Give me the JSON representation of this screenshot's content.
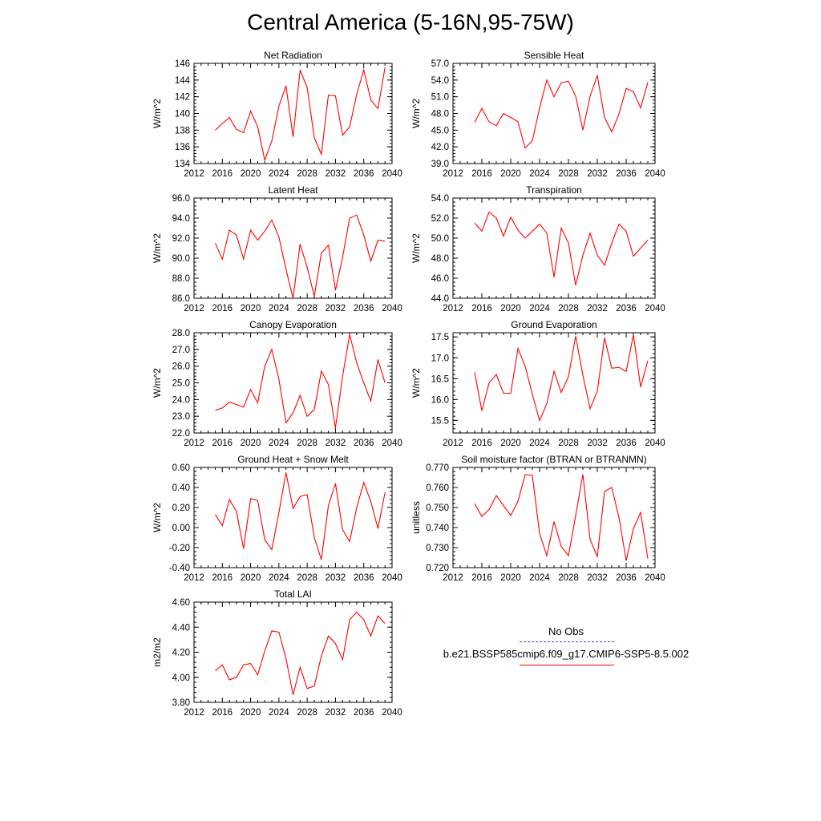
{
  "page": {
    "title": "Central America (5-16N,95-75W)"
  },
  "legend": {
    "obs_label": "No Obs",
    "case_label": "b.e21.BSSP585cmip6.f09_g17.CMIP6-SSP5-8.5.002",
    "obs_color": "#3a3adf",
    "case_color": "#ff0000"
  },
  "chart_data": [
    {
      "type": "line",
      "title": "Net Radiation",
      "xlabel": "",
      "ylabel": "W/m^2",
      "xlim": [
        2012,
        2040
      ],
      "ylim": [
        134,
        146
      ],
      "xticks": [
        "2012",
        "2016",
        "2020",
        "2024",
        "2028",
        "2032",
        "2036",
        "2040"
      ],
      "yticks": [
        "134",
        "136",
        "138",
        "140",
        "142",
        "144",
        "146"
      ],
      "x": [
        2015,
        2016,
        2017,
        2018,
        2019,
        2020,
        2021,
        2022,
        2023,
        2024,
        2025,
        2026,
        2027,
        2028,
        2029,
        2030,
        2031,
        2032,
        2033,
        2034,
        2035,
        2036,
        2037,
        2038,
        2039
      ],
      "series": [
        {
          "color": "#ff0000",
          "values": [
            138.0,
            138.8,
            139.5,
            138.1,
            137.7,
            140.3,
            138.4,
            134.4,
            136.7,
            140.9,
            143.3,
            137.2,
            145.2,
            143.1,
            137.1,
            135.1,
            142.2,
            142.1,
            137.4,
            138.4,
            142.3,
            145.2,
            141.6,
            140.6,
            145.5
          ]
        }
      ]
    },
    {
      "type": "line",
      "title": "Sensible Heat",
      "xlabel": "",
      "ylabel": "W/m^2",
      "xlim": [
        2012,
        2040
      ],
      "ylim": [
        39.0,
        57.0
      ],
      "xticks": [
        "2012",
        "2016",
        "2020",
        "2024",
        "2028",
        "2032",
        "2036",
        "2040"
      ],
      "yticks": [
        "39.0",
        "42.0",
        "45.0",
        "48.0",
        "51.0",
        "54.0",
        "57.0"
      ],
      "x": [
        2015,
        2016,
        2017,
        2018,
        2019,
        2020,
        2021,
        2022,
        2023,
        2024,
        2025,
        2026,
        2027,
        2028,
        2029,
        2030,
        2031,
        2032,
        2033,
        2034,
        2035,
        2036,
        2037,
        2038,
        2039
      ],
      "series": [
        {
          "color": "#ff0000",
          "values": [
            46.4,
            48.9,
            46.5,
            45.8,
            48.0,
            47.3,
            46.5,
            41.8,
            43.1,
            49.0,
            54.0,
            51.0,
            53.5,
            53.8,
            51.1,
            45.0,
            51.1,
            54.8,
            47.3,
            44.7,
            47.9,
            52.5,
            51.9,
            49.0,
            53.6
          ]
        }
      ]
    },
    {
      "type": "line",
      "title": "Latent Heat",
      "xlabel": "",
      "ylabel": "W/m^2",
      "xlim": [
        2012,
        2040
      ],
      "ylim": [
        86.0,
        96.0
      ],
      "xticks": [
        "2012",
        "2016",
        "2020",
        "2024",
        "2028",
        "2032",
        "2036",
        "2040"
      ],
      "yticks": [
        "86.0",
        "88.0",
        "90.0",
        "92.0",
        "94.0",
        "96.0"
      ],
      "x": [
        2015,
        2016,
        2017,
        2018,
        2019,
        2020,
        2021,
        2022,
        2023,
        2024,
        2025,
        2026,
        2027,
        2028,
        2029,
        2030,
        2031,
        2032,
        2033,
        2034,
        2035,
        2036,
        2037,
        2038,
        2039
      ],
      "series": [
        {
          "color": "#ff0000",
          "values": [
            91.5,
            89.9,
            92.8,
            92.3,
            89.9,
            92.8,
            91.8,
            92.7,
            93.8,
            92.1,
            88.9,
            86.0,
            91.4,
            89.1,
            86.2,
            90.5,
            91.3,
            86.8,
            90.1,
            94.0,
            94.3,
            92.3,
            89.7,
            91.8,
            91.7
          ]
        }
      ]
    },
    {
      "type": "line",
      "title": "Transpiration",
      "xlabel": "",
      "ylabel": "W/m^2",
      "xlim": [
        2012,
        2040
      ],
      "ylim": [
        44.0,
        54.0
      ],
      "xticks": [
        "2012",
        "2016",
        "2020",
        "2024",
        "2028",
        "2032",
        "2036",
        "2040"
      ],
      "yticks": [
        "44.0",
        "46.0",
        "48.0",
        "50.0",
        "52.0",
        "54.0"
      ],
      "x": [
        2015,
        2016,
        2017,
        2018,
        2019,
        2020,
        2021,
        2022,
        2023,
        2024,
        2025,
        2026,
        2027,
        2028,
        2029,
        2030,
        2031,
        2032,
        2033,
        2034,
        2035,
        2036,
        2037,
        2038,
        2039
      ],
      "series": [
        {
          "color": "#ff0000",
          "values": [
            51.5,
            50.7,
            52.6,
            52.0,
            50.2,
            52.1,
            50.8,
            50.0,
            50.7,
            51.4,
            50.5,
            46.1,
            51.0,
            49.5,
            45.3,
            48.3,
            50.5,
            48.3,
            47.3,
            49.5,
            51.4,
            50.7,
            48.2,
            49.0,
            49.8
          ]
        }
      ]
    },
    {
      "type": "line",
      "title": "Canopy Evaporation",
      "xlabel": "",
      "ylabel": "W/m^2",
      "xlim": [
        2012,
        2040
      ],
      "ylim": [
        22.0,
        28.0
      ],
      "xticks": [
        "2012",
        "2016",
        "2020",
        "2024",
        "2028",
        "2032",
        "2036",
        "2040"
      ],
      "yticks": [
        "22.0",
        "23.0",
        "24.0",
        "25.0",
        "26.0",
        "27.0",
        "28.0"
      ],
      "x": [
        2015,
        2016,
        2017,
        2018,
        2019,
        2020,
        2021,
        2022,
        2023,
        2024,
        2025,
        2026,
        2027,
        2028,
        2029,
        2030,
        2031,
        2032,
        2033,
        2034,
        2035,
        2036,
        2037,
        2038,
        2039
      ],
      "series": [
        {
          "color": "#ff0000",
          "values": [
            23.35,
            23.5,
            23.85,
            23.7,
            23.55,
            24.6,
            23.8,
            26.0,
            27.0,
            25.2,
            22.6,
            23.2,
            24.25,
            23.0,
            23.4,
            25.7,
            24.9,
            22.3,
            25.4,
            27.9,
            26.2,
            25.0,
            23.9,
            26.4,
            25.0
          ]
        }
      ]
    },
    {
      "type": "line",
      "title": "Ground Evaporation",
      "xlabel": "",
      "ylabel": "W/m^2",
      "xlim": [
        2012,
        2040
      ],
      "ylim": [
        15.2,
        17.6
      ],
      "xticks": [
        "2012",
        "2016",
        "2020",
        "2024",
        "2028",
        "2032",
        "2036",
        "2040"
      ],
      "yticks": [
        "15.5",
        "16.0",
        "16.5",
        "17.0",
        "17.5"
      ],
      "x": [
        2015,
        2016,
        2017,
        2018,
        2019,
        2020,
        2021,
        2022,
        2023,
        2024,
        2025,
        2026,
        2027,
        2028,
        2029,
        2030,
        2031,
        2032,
        2033,
        2034,
        2035,
        2036,
        2037,
        2038,
        2039
      ],
      "series": [
        {
          "color": "#ff0000",
          "values": [
            16.65,
            15.73,
            16.4,
            16.6,
            16.15,
            16.15,
            17.22,
            16.8,
            16.12,
            15.5,
            15.9,
            16.68,
            16.17,
            16.55,
            17.52,
            16.58,
            15.78,
            16.2,
            17.48,
            16.75,
            16.77,
            16.67,
            17.55,
            16.3,
            16.93
          ]
        }
      ]
    },
    {
      "type": "line",
      "title": "Ground Heat + Snow Melt",
      "xlabel": "",
      "ylabel": "W/m^2",
      "xlim": [
        2012,
        2040
      ],
      "ylim": [
        -0.4,
        0.6
      ],
      "xticks": [
        "2012",
        "2016",
        "2020",
        "2024",
        "2028",
        "2032",
        "2036",
        "2040"
      ],
      "yticks": [
        "-0.40",
        "-0.20",
        "0.00",
        "0.20",
        "0.40",
        "0.60"
      ],
      "x": [
        2015,
        2016,
        2017,
        2018,
        2019,
        2020,
        2021,
        2022,
        2023,
        2024,
        2025,
        2026,
        2027,
        2028,
        2029,
        2030,
        2031,
        2032,
        2033,
        2034,
        2035,
        2036,
        2037,
        2038,
        2039
      ],
      "series": [
        {
          "color": "#ff0000",
          "values": [
            0.13,
            0.02,
            0.28,
            0.16,
            -0.21,
            0.29,
            0.27,
            -0.12,
            -0.22,
            0.15,
            0.55,
            0.19,
            0.31,
            0.33,
            -0.1,
            -0.32,
            0.22,
            0.44,
            -0.02,
            -0.14,
            0.2,
            0.45,
            0.26,
            -0.01,
            0.35
          ]
        }
      ]
    },
    {
      "type": "line",
      "title": "Soil moisture factor (BTRAN or BTRANMN)",
      "xlabel": "",
      "ylabel": "unitless",
      "xlim": [
        2012,
        2040
      ],
      "ylim": [
        0.72,
        0.77
      ],
      "xticks": [
        "2012",
        "2016",
        "2020",
        "2024",
        "2028",
        "2032",
        "2036",
        "2040"
      ],
      "yticks": [
        "0.720",
        "0.730",
        "0.740",
        "0.750",
        "0.760",
        "0.770"
      ],
      "x": [
        2015,
        2016,
        2017,
        2018,
        2019,
        2020,
        2021,
        2022,
        2023,
        2024,
        2025,
        2026,
        2027,
        2028,
        2029,
        2030,
        2031,
        2032,
        2033,
        2034,
        2035,
        2036,
        2037,
        2038,
        2039
      ],
      "series": [
        {
          "color": "#ff0000",
          "values": [
            0.752,
            0.7455,
            0.749,
            0.756,
            0.751,
            0.746,
            0.753,
            0.7665,
            0.766,
            0.737,
            0.726,
            0.743,
            0.7305,
            0.726,
            0.746,
            0.7665,
            0.734,
            0.7255,
            0.758,
            0.76,
            0.745,
            0.7235,
            0.7395,
            0.7475,
            0.7245
          ]
        }
      ]
    },
    {
      "type": "line",
      "title": "Total LAI",
      "xlabel": "",
      "ylabel": "m2/m2",
      "xlim": [
        2012,
        2040
      ],
      "ylim": [
        3.8,
        4.6
      ],
      "xticks": [
        "2012",
        "2016",
        "2020",
        "2024",
        "2028",
        "2032",
        "2036",
        "2040"
      ],
      "yticks": [
        "3.80",
        "4.00",
        "4.20",
        "4.40",
        "4.60"
      ],
      "x": [
        2015,
        2016,
        2017,
        2018,
        2019,
        2020,
        2021,
        2022,
        2023,
        2024,
        2025,
        2026,
        2027,
        2028,
        2029,
        2030,
        2031,
        2032,
        2033,
        2034,
        2035,
        2036,
        2037,
        2038,
        2039
      ],
      "series": [
        {
          "color": "#ff0000",
          "values": [
            4.05,
            4.1,
            3.98,
            4.0,
            4.1,
            4.11,
            4.02,
            4.21,
            4.37,
            4.36,
            4.15,
            3.86,
            4.08,
            3.91,
            3.93,
            4.17,
            4.33,
            4.27,
            4.14,
            4.46,
            4.52,
            4.46,
            4.33,
            4.49,
            4.43
          ]
        }
      ]
    }
  ]
}
